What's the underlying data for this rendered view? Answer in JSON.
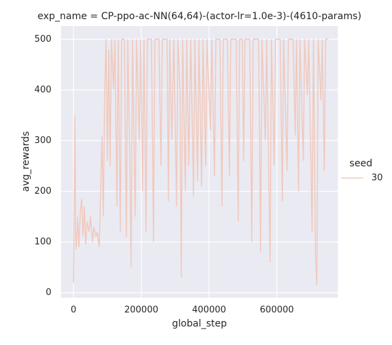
{
  "chart_data": {
    "type": "line",
    "title": "exp_name = CP-ppo-ac-NN(64,64)-(actor-lr=1.0e-3)-(4610-params)",
    "xlabel": "global_step",
    "ylabel": "avg_rewards",
    "legend_title": "seed",
    "legend": "right",
    "grid": true,
    "xlim": [
      -37000,
      780000
    ],
    "ylim": [
      -10,
      526
    ],
    "xticks": [
      0,
      200000,
      400000,
      600000
    ],
    "yticks": [
      0,
      100,
      200,
      300,
      400,
      500
    ],
    "x": [
      0,
      2000,
      4000,
      6000,
      8000,
      12000,
      16000,
      20000,
      24000,
      28000,
      32000,
      36000,
      40000,
      46000,
      50000,
      56000,
      60000,
      66000,
      70000,
      76000,
      80000,
      84000,
      88000,
      92000,
      96000,
      100000,
      104000,
      108000,
      112000,
      118000,
      122000,
      128000,
      132000,
      138000,
      142000,
      150000,
      156000,
      160000,
      166000,
      170000,
      174000,
      182000,
      186000,
      194000,
      198000,
      204000,
      208000,
      214000,
      218000,
      230000,
      236000,
      240000,
      252000,
      258000,
      262000,
      276000,
      280000,
      284000,
      290000,
      296000,
      304000,
      308000,
      314000,
      318000,
      322000,
      330000,
      334000,
      340000,
      346000,
      354000,
      358000,
      366000,
      370000,
      378000,
      382000,
      390000,
      394000,
      404000,
      408000,
      416000,
      420000,
      432000,
      438000,
      442000,
      454000,
      460000,
      464000,
      480000,
      486000,
      490000,
      498000,
      502000,
      506000,
      520000,
      526000,
      530000,
      546000,
      552000,
      556000,
      566000,
      570000,
      580000,
      584000,
      592000,
      596000,
      610000,
      616000,
      620000,
      630000,
      634000,
      648000,
      654000,
      658000,
      664000,
      668000,
      678000,
      682000,
      690000,
      694000,
      704000,
      708000,
      714000,
      718000,
      722000,
      730000,
      734000,
      740000,
      744000,
      752000
    ],
    "series": [
      {
        "name": "30",
        "color": "#f0c9bd",
        "values": [
          20,
          190,
          350,
          120,
          85,
          150,
          90,
          160,
          185,
          110,
          170,
          95,
          140,
          120,
          150,
          100,
          130,
          110,
          120,
          90,
          200,
          310,
          150,
          390,
          500,
          260,
          480,
          250,
          500,
          400,
          500,
          170,
          500,
          120,
          500,
          500,
          110,
          500,
          270,
          50,
          500,
          150,
          500,
          300,
          500,
          200,
          500,
          120,
          500,
          500,
          100,
          500,
          500,
          250,
          500,
          500,
          180,
          500,
          300,
          500,
          170,
          500,
          400,
          30,
          500,
          200,
          500,
          250,
          500,
          190,
          500,
          220,
          500,
          210,
          500,
          250,
          500,
          320,
          500,
          230,
          500,
          500,
          170,
          500,
          500,
          230,
          500,
          500,
          140,
          500,
          500,
          260,
          500,
          500,
          100,
          500,
          500,
          80,
          500,
          300,
          500,
          60,
          500,
          250,
          500,
          500,
          180,
          500,
          240,
          500,
          500,
          310,
          500,
          200,
          500,
          260,
          500,
          390,
          500,
          120,
          500,
          75,
          15,
          500,
          380,
          500,
          240,
          500,
          500
        ]
      }
    ]
  }
}
